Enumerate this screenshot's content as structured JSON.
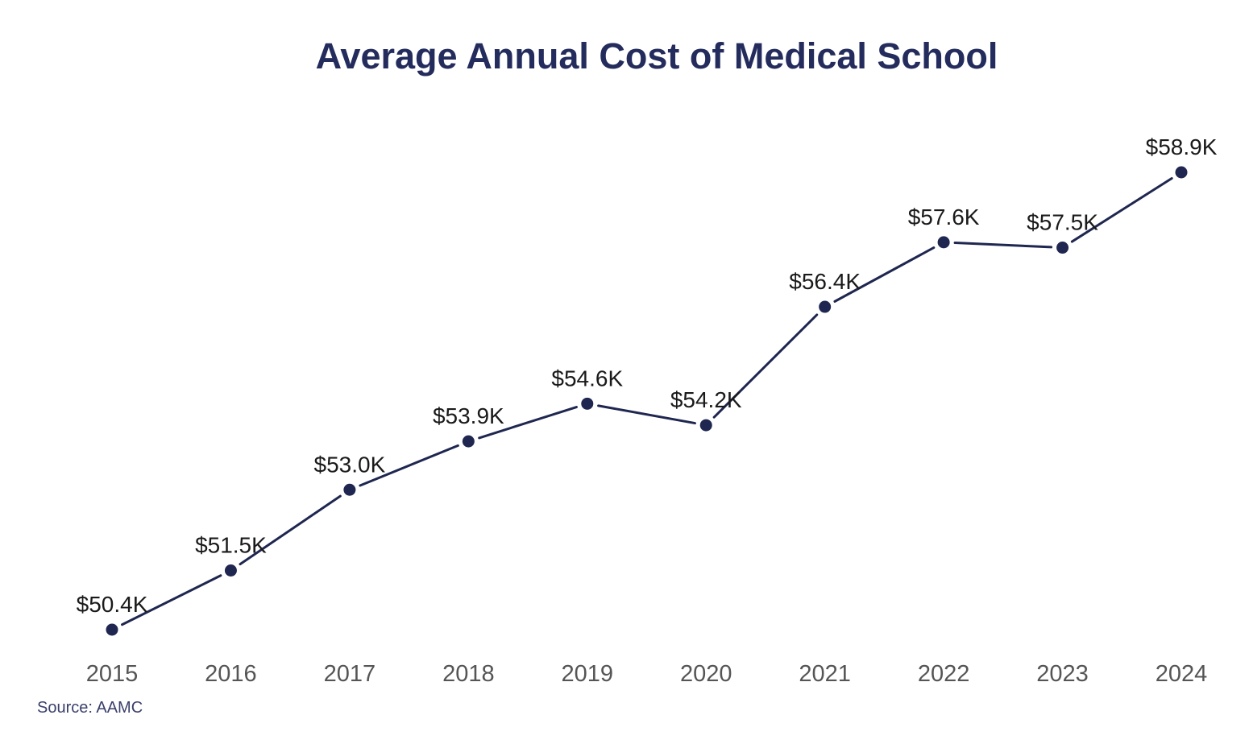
{
  "chart_data": {
    "type": "line",
    "title": "Average Annual Cost of Medical School",
    "source": "Source: AAMC",
    "xlabel": "",
    "ylabel": "",
    "categories": [
      "2015",
      "2016",
      "2017",
      "2018",
      "2019",
      "2020",
      "2021",
      "2022",
      "2023",
      "2024"
    ],
    "series": [
      {
        "name": "Average Annual Cost",
        "values": [
          50.4,
          51.5,
          53.0,
          53.9,
          54.6,
          54.2,
          56.4,
          57.6,
          57.5,
          58.9
        ],
        "labels": [
          "$50.4K",
          "$51.5K",
          "$53.0K",
          "$53.9K",
          "$54.6K",
          "$54.2K",
          "$56.4K",
          "$57.6K",
          "$57.5K",
          "$58.9K"
        ],
        "color": "#1f2750"
      }
    ],
    "units": "thousands USD",
    "grid": false,
    "legend": "none"
  }
}
